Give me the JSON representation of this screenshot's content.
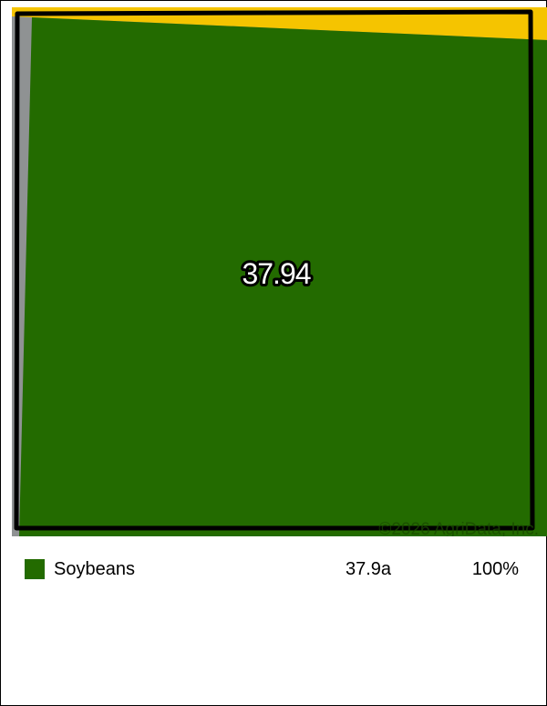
{
  "map": {
    "field_acres_label": "37.94",
    "watermark": "©2026 AgriData, Inc.",
    "colors": {
      "crop_fill": "#236b00",
      "adjacent_field": "#f5c400",
      "background": "#8f9293",
      "boundary": "#000000"
    }
  },
  "legend": {
    "items": [
      {
        "name": "Soybeans",
        "acres": "37.9a",
        "percent": "100%",
        "color": "#236b00"
      }
    ]
  }
}
